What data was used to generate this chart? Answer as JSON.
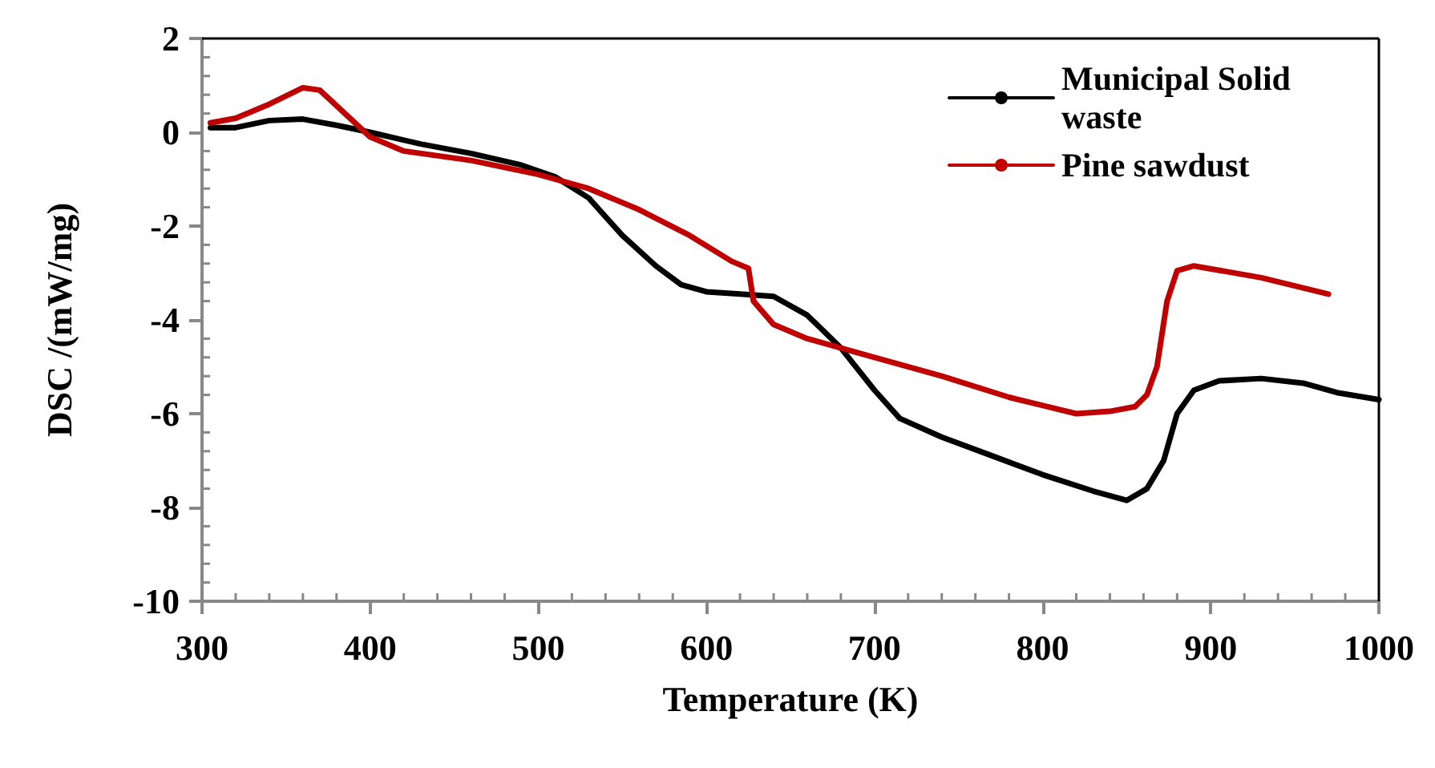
{
  "chart_data": {
    "type": "line",
    "xlabel": "Temperature (K)",
    "ylabel": "DSC /(mW/mg)",
    "xlim": [
      300,
      1000
    ],
    "xticks": [
      300,
      400,
      500,
      600,
      700,
      800,
      900,
      1000
    ],
    "ylim": [
      -10,
      2
    ],
    "yticks": [
      -10,
      -8,
      -6,
      -4,
      -2,
      0,
      2
    ],
    "grid": false,
    "legend": "top right",
    "marker": "none",
    "series": [
      {
        "name": "Municipal Solid waste",
        "color": "#000000",
        "x": [
          305,
          320,
          340,
          360,
          380,
          400,
          430,
          460,
          490,
          510,
          530,
          550,
          570,
          585,
          600,
          620,
          640,
          660,
          680,
          700,
          715,
          740,
          770,
          800,
          830,
          850,
          862,
          872,
          880,
          890,
          905,
          930,
          955,
          975,
          1000
        ],
        "values": [
          0.1,
          0.1,
          0.25,
          0.28,
          0.15,
          0,
          -0.25,
          -0.45,
          -0.7,
          -0.95,
          -1.4,
          -2.2,
          -2.85,
          -3.25,
          -3.4,
          -3.45,
          -3.5,
          -3.9,
          -4.6,
          -5.5,
          -6.1,
          -6.5,
          -6.9,
          -7.3,
          -7.65,
          -7.85,
          -7.6,
          -7,
          -6,
          -5.5,
          -5.3,
          -5.25,
          -5.35,
          -5.55,
          -5.7
        ]
      },
      {
        "name": "Pine sawdust",
        "color": "#c00000",
        "x": [
          305,
          320,
          340,
          360,
          370,
          385,
          400,
          420,
          460,
          500,
          530,
          560,
          590,
          615,
          625,
          628,
          640,
          660,
          700,
          740,
          780,
          820,
          840,
          855,
          862,
          868,
          874,
          880,
          890,
          930,
          970
        ],
        "values": [
          0.2,
          0.3,
          0.6,
          0.95,
          0.9,
          0.4,
          -0.1,
          -0.4,
          -0.6,
          -0.9,
          -1.2,
          -1.65,
          -2.2,
          -2.75,
          -2.9,
          -3.6,
          -4.1,
          -4.4,
          -4.8,
          -5.2,
          -5.65,
          -6,
          -5.95,
          -5.85,
          -5.6,
          -5,
          -3.6,
          -2.95,
          -2.85,
          -3.1,
          -3.45
        ]
      }
    ]
  }
}
